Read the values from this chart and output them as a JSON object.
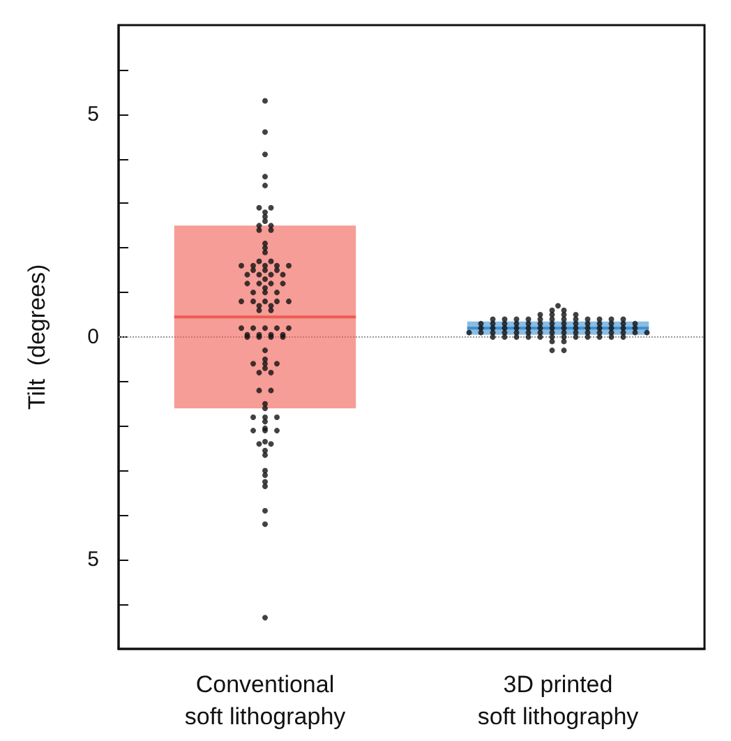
{
  "chart_data": {
    "type": "box",
    "ylabel": "Tilt  (degrees)",
    "categories": [
      "Conventional\nsoft lithography",
      "3D printed\nsoft lithography"
    ],
    "boxes": [
      {
        "low": -1.6,
        "q1": -1.6,
        "median": 0.45,
        "q3": 2.5,
        "high": 2.5
      },
      {
        "low": 0.05,
        "q1": 0.05,
        "median": 0.2,
        "q3": 0.35,
        "high": 0.35
      }
    ],
    "colors": [
      "#ee5b50",
      "#3d8fd0"
    ],
    "series": [
      {
        "type": "scatter",
        "color": "#111111",
        "x": [
          "Conventional\nsoft lithography",
          "Conventional\nsoft lithography",
          "Conventional\nsoft lithography",
          "Conventional\nsoft lithography",
          "Conventional\nsoft lithography",
          "Conventional\nsoft lithography",
          "Conventional\nsoft lithography",
          "Conventional\nsoft lithography",
          "Conventional\nsoft lithography",
          "Conventional\nsoft lithography",
          "Conventional\nsoft lithography",
          "Conventional\nsoft lithography",
          "Conventional\nsoft lithography",
          "Conventional\nsoft lithography",
          "Conventional\nsoft lithography",
          "Conventional\nsoft lithography",
          "Conventional\nsoft lithography",
          "Conventional\nsoft lithography",
          "Conventional\nsoft lithography",
          "Conventional\nsoft lithography",
          "Conventional\nsoft lithography",
          "Conventional\nsoft lithography",
          "Conventional\nsoft lithography",
          "Conventional\nsoft lithography",
          "Conventional\nsoft lithography",
          "Conventional\nsoft lithography",
          "Conventional\nsoft lithography",
          "Conventional\nsoft lithography",
          "Conventional\nsoft lithography",
          "Conventional\nsoft lithography",
          "Conventional\nsoft lithography",
          "Conventional\nsoft lithography",
          "Conventional\nsoft lithography",
          "Conventional\nsoft lithography",
          "Conventional\nsoft lithography",
          "Conventional\nsoft lithography",
          "Conventional\nsoft lithography",
          "Conventional\nsoft lithography",
          "Conventional\nsoft lithography",
          "Conventional\nsoft lithography",
          "Conventional\nsoft lithography",
          "Conventional\nsoft lithography",
          "Conventional\nsoft lithography",
          "Conventional\nsoft lithography",
          "Conventional\nsoft lithography",
          "Conventional\nsoft lithography",
          "Conventional\nsoft lithography",
          "Conventional\nsoft lithography",
          "Conventional\nsoft lithography",
          "Conventional\nsoft lithography",
          "Conventional\nsoft lithography",
          "Conventional\nsoft lithography",
          "Conventional\nsoft lithography",
          "Conventional\nsoft lithography",
          "Conventional\nsoft lithography",
          "Conventional\nsoft lithography",
          "Conventional\nsoft lithography",
          "Conventional\nsoft lithography",
          "Conventional\nsoft lithography",
          "Conventional\nsoft lithography",
          "Conventional\nsoft lithography",
          "Conventional\nsoft lithography",
          "Conventional\nsoft lithography",
          "Conventional\nsoft lithography",
          "Conventional\nsoft lithography",
          "Conventional\nsoft lithography",
          "Conventional\nsoft lithography",
          "Conventional\nsoft lithography",
          "Conventional\nsoft lithography",
          "Conventional\nsoft lithography",
          "Conventional\nsoft lithography",
          "Conventional\nsoft lithography",
          "Conventional\nsoft lithography",
          "Conventional\nsoft lithography",
          "Conventional\nsoft lithography",
          "Conventional\nsoft lithography",
          "Conventional\nsoft lithography",
          "Conventional\nsoft lithography",
          "Conventional\nsoft lithography",
          "Conventional\nsoft lithography",
          "Conventional\nsoft lithography",
          "Conventional\nsoft lithography",
          "Conventional\nsoft lithography",
          "Conventional\nsoft lithography",
          "Conventional\nsoft lithography",
          "Conventional\nsoft lithography",
          "Conventional\nsoft lithography",
          "Conventional\nsoft lithography",
          "Conventional\nsoft lithography",
          "Conventional\nsoft lithography",
          "Conventional\nsoft lithography",
          "Conventional\nsoft lithography",
          "Conventional\nsoft lithography",
          "Conventional\nsoft lithography"
        ],
        "values": [
          5.3,
          4.6,
          4.1,
          3.6,
          3.4,
          2.9,
          2.9,
          2.8,
          2.7,
          2.6,
          2.5,
          2.5,
          2.4,
          2.4,
          2.1,
          2.0,
          1.9,
          1.7,
          1.7,
          1.6,
          1.6,
          1.6,
          1.6,
          1.6,
          1.5,
          1.5,
          1.5,
          1.4,
          1.4,
          1.4,
          1.4,
          1.3,
          1.2,
          1.2,
          1.2,
          1.2,
          1.1,
          1.0,
          1.0,
          1.0,
          0.8,
          0.8,
          0.8,
          0.8,
          0.8,
          0.7,
          0.7,
          0.6,
          0.6,
          0.2,
          0.2,
          0.2,
          0.2,
          0.2,
          0.05,
          0.05,
          0.05,
          0.05,
          0,
          0,
          0,
          0,
          -0.3,
          -0.5,
          -0.6,
          -0.6,
          -0.6,
          -0.7,
          -0.8,
          -0.8,
          -1.2,
          -1.2,
          -1.5,
          -1.6,
          -1.8,
          -1.8,
          -1.8,
          -1.9,
          -2.05,
          -2.1,
          -2.1,
          -2.1,
          -2.35,
          -2.4,
          -2.4,
          -2.55,
          -2.65,
          -3.0,
          -3.1,
          -3.25,
          -3.35,
          -3.9,
          -4.2,
          -6.3
        ]
      },
      {
        "type": "scatter",
        "color": "#111111",
        "x": [
          "3D printed\nsoft lithography",
          "3D printed\nsoft lithography",
          "3D printed\nsoft lithography",
          "3D printed\nsoft lithography",
          "3D printed\nsoft lithography",
          "3D printed\nsoft lithography",
          "3D printed\nsoft lithography",
          "3D printed\nsoft lithography",
          "3D printed\nsoft lithography",
          "3D printed\nsoft lithography",
          "3D printed\nsoft lithography",
          "3D printed\nsoft lithography",
          "3D printed\nsoft lithography",
          "3D printed\nsoft lithography",
          "3D printed\nsoft lithography",
          "3D printed\nsoft lithography",
          "3D printed\nsoft lithography",
          "3D printed\nsoft lithography",
          "3D printed\nsoft lithography",
          "3D printed\nsoft lithography",
          "3D printed\nsoft lithography",
          "3D printed\nsoft lithography",
          "3D printed\nsoft lithography",
          "3D printed\nsoft lithography",
          "3D printed\nsoft lithography",
          "3D printed\nsoft lithography",
          "3D printed\nsoft lithography",
          "3D printed\nsoft lithography",
          "3D printed\nsoft lithography",
          "3D printed\nsoft lithography",
          "3D printed\nsoft lithography",
          "3D printed\nsoft lithography",
          "3D printed\nsoft lithography",
          "3D printed\nsoft lithography",
          "3D printed\nsoft lithography",
          "3D printed\nsoft lithography",
          "3D printed\nsoft lithography",
          "3D printed\nsoft lithography",
          "3D printed\nsoft lithography",
          "3D printed\nsoft lithography",
          "3D printed\nsoft lithography",
          "3D printed\nsoft lithography",
          "3D printed\nsoft lithography",
          "3D printed\nsoft lithography",
          "3D printed\nsoft lithography",
          "3D printed\nsoft lithography",
          "3D printed\nsoft lithography",
          "3D printed\nsoft lithography",
          "3D printed\nsoft lithography",
          "3D printed\nsoft lithography",
          "3D printed\nsoft lithography",
          "3D printed\nsoft lithography",
          "3D printed\nsoft lithography",
          "3D printed\nsoft lithography",
          "3D printed\nsoft lithography",
          "3D printed\nsoft lithography",
          "3D printed\nsoft lithography",
          "3D printed\nsoft lithography",
          "3D printed\nsoft lithography",
          "3D printed\nsoft lithography",
          "3D printed\nsoft lithography",
          "3D printed\nsoft lithography",
          "3D printed\nsoft lithography",
          "3D printed\nsoft lithography",
          "3D printed\nsoft lithography",
          "3D printed\nsoft lithography",
          "3D printed\nsoft lithography",
          "3D printed\nsoft lithography",
          "3D printed\nsoft lithography",
          "3D printed\nsoft lithography",
          "3D printed\nsoft lithography",
          "3D printed\nsoft lithography",
          "3D printed\nsoft lithography",
          "3D printed\nsoft lithography",
          "3D printed\nsoft lithography",
          "3D printed\nsoft lithography",
          "3D printed\nsoft lithography",
          "3D printed\nsoft lithography",
          "3D printed\nsoft lithography"
        ],
        "values": [
          0.7,
          0.6,
          0.6,
          0.5,
          0.5,
          0.5,
          0.5,
          0.4,
          0.4,
          0.4,
          0.4,
          0.4,
          0.4,
          0.4,
          0.4,
          0.4,
          0.4,
          0.4,
          0.4,
          0.3,
          0.3,
          0.3,
          0.3,
          0.3,
          0.3,
          0.3,
          0.3,
          0.3,
          0.3,
          0.3,
          0.3,
          0.3,
          0.3,
          0.2,
          0.2,
          0.2,
          0.2,
          0.2,
          0.2,
          0.2,
          0.2,
          0.2,
          0.2,
          0.2,
          0.2,
          0.2,
          0.2,
          0.1,
          0.1,
          0.1,
          0.1,
          0.1,
          0.1,
          0.1,
          0.1,
          0.1,
          0.1,
          0.1,
          0.1,
          0.1,
          0.1,
          0.1,
          0.1,
          0,
          0,
          0,
          0,
          0,
          0,
          0,
          0,
          0,
          0,
          0,
          0,
          -0.1,
          -0.1,
          -0.3,
          -0.3
        ]
      }
    ],
    "ylim": [
      -7,
      7
    ],
    "yticks": [
      {
        "value": -6,
        "label": null
      },
      {
        "value": -5,
        "label": "5"
      },
      {
        "value": -4,
        "label": null
      },
      {
        "value": -3,
        "label": null
      },
      {
        "value": -2,
        "label": null
      },
      {
        "value": -1,
        "label": null
      },
      0,
      {
        "value": 1,
        "label": null
      },
      {
        "value": 2,
        "label": null
      },
      {
        "value": 3,
        "label": null
      },
      {
        "value": 4,
        "label": null
      },
      5,
      {
        "value": 6,
        "label": null
      }
    ],
    "ref_lines": [
      {
        "axis": "y",
        "value": 0,
        "color": "#999999",
        "line_style": "dotted"
      }
    ],
    "marker": "circle"
  }
}
